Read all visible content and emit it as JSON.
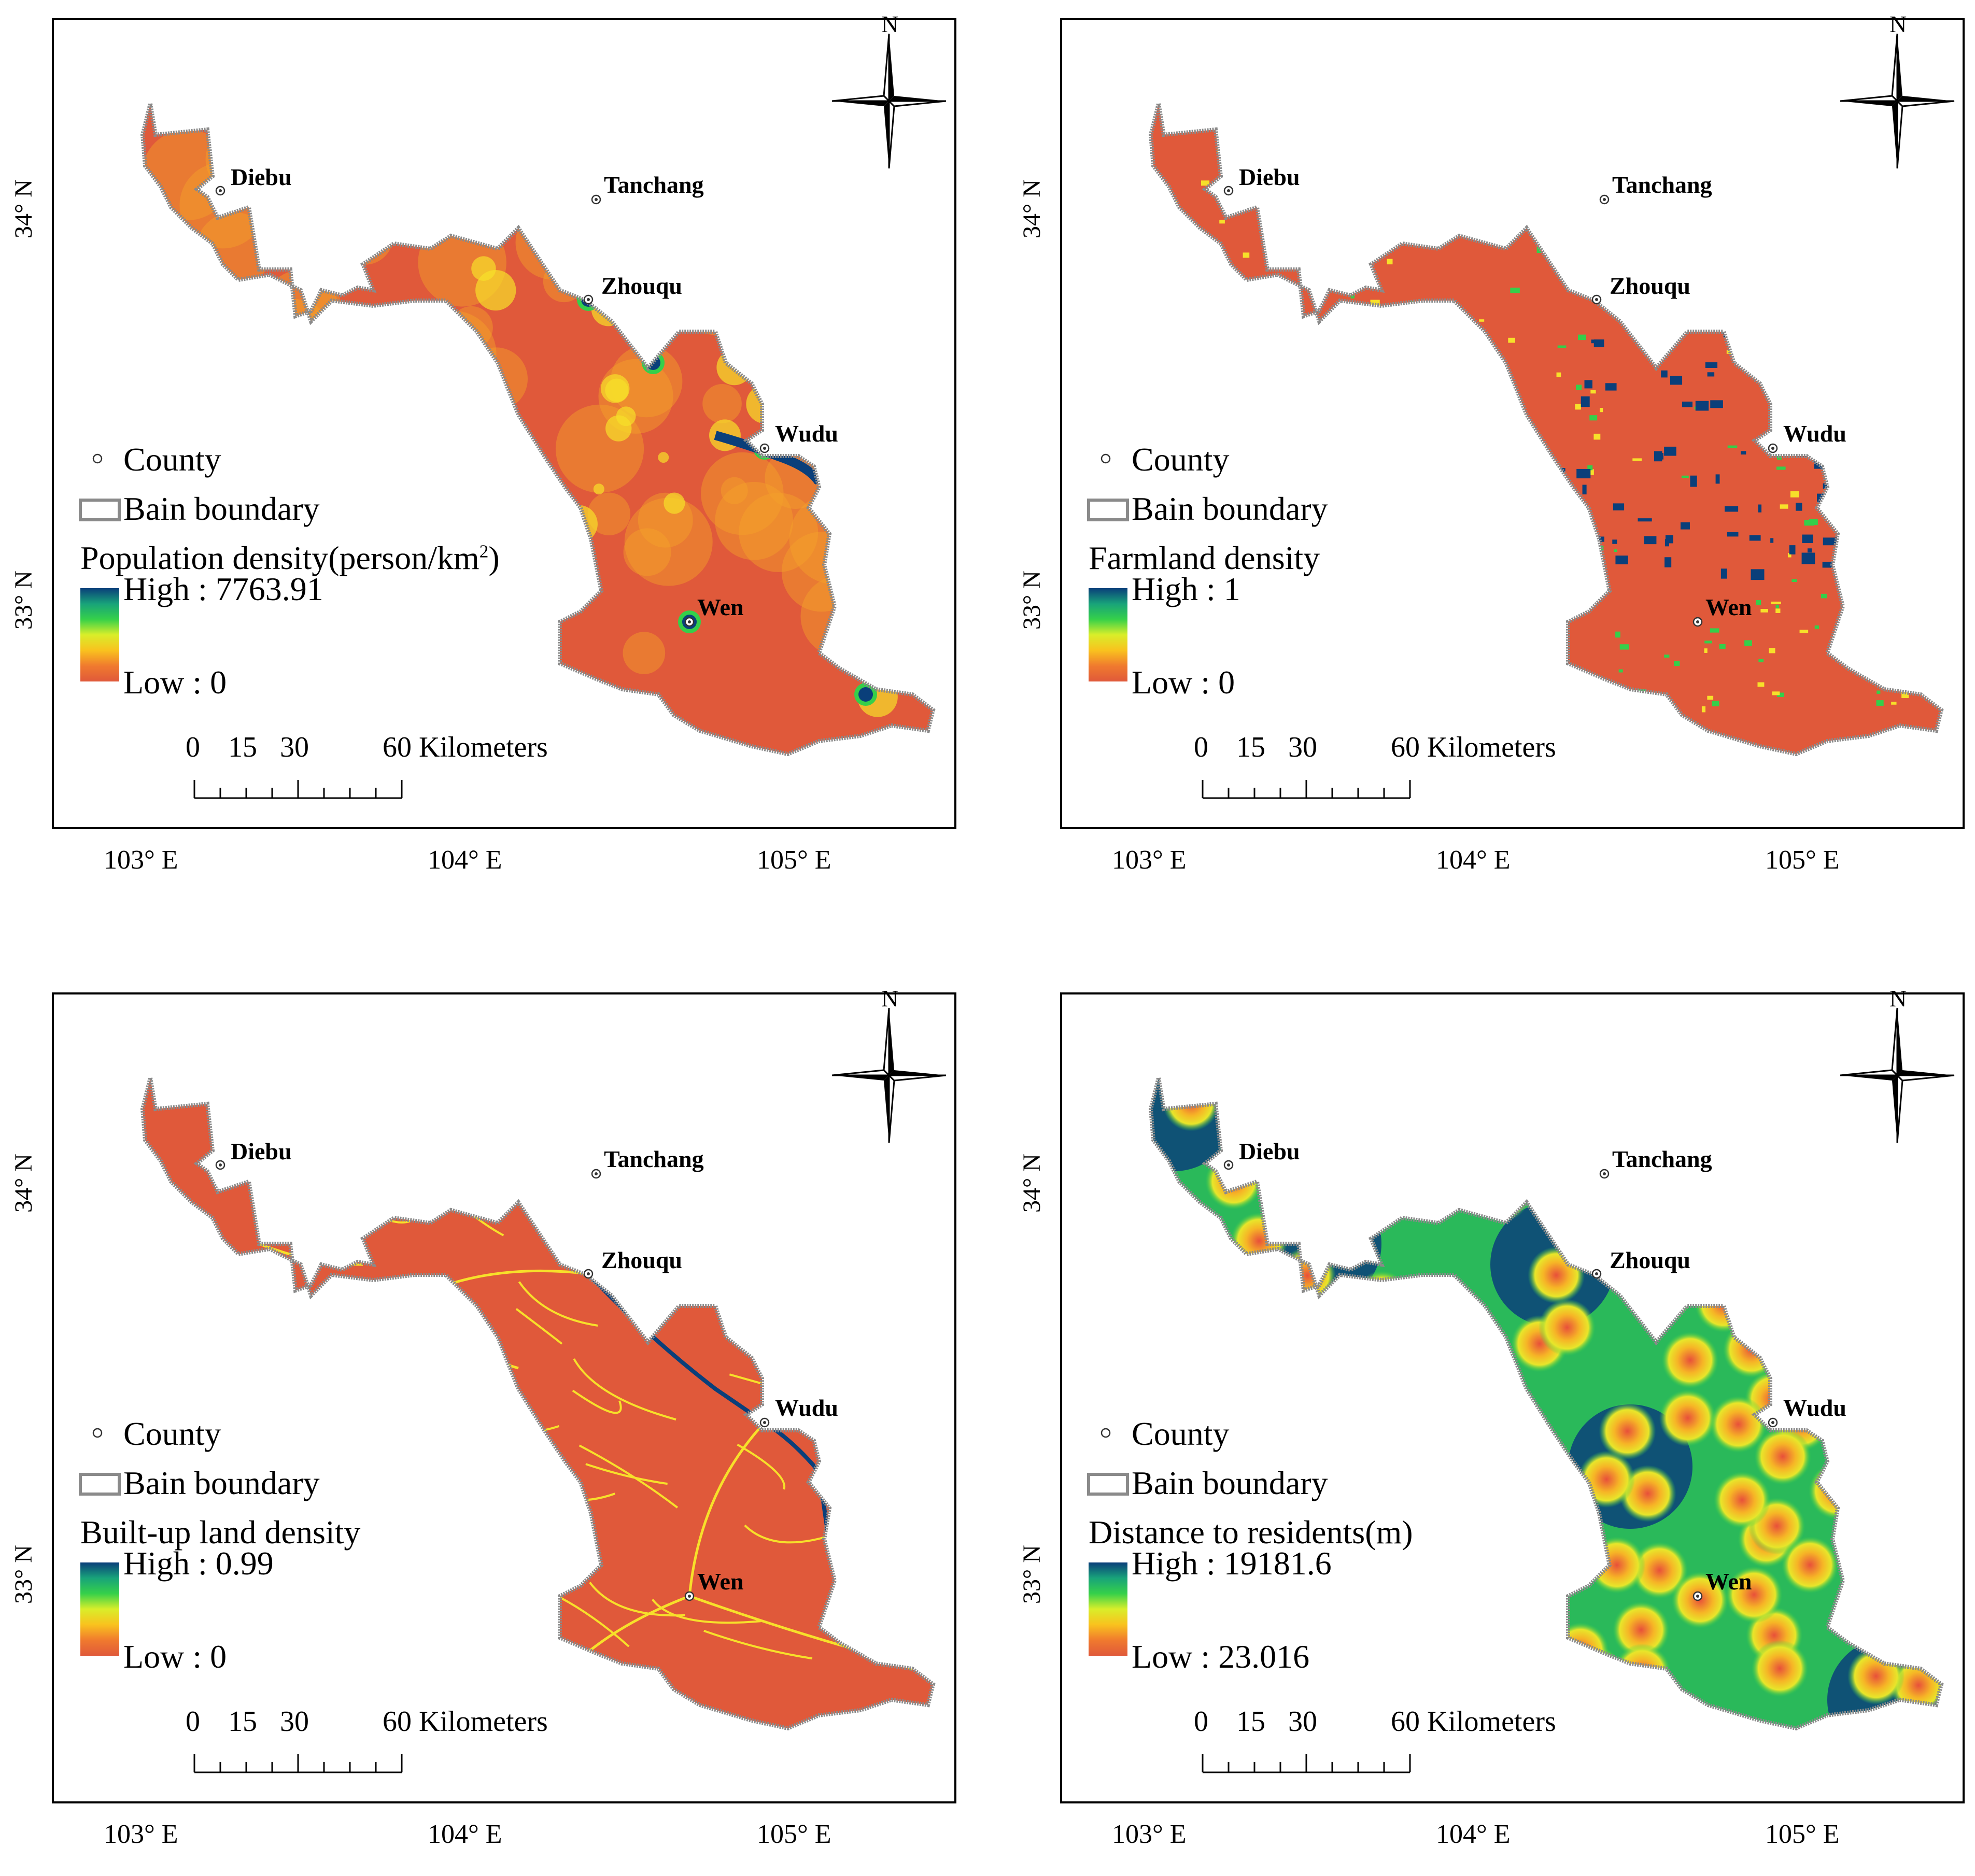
{
  "panels": [
    {
      "id": "population",
      "legend_title": "Population density(person/km",
      "legend_title_sup": "2",
      "legend_title_tail": ")",
      "high_label": "High : 7763.91",
      "low_label": "Low : 0",
      "colors": {
        "base": "#e0593a",
        "mid": "#f3a12a",
        "hot": "#f7e02a",
        "high": "#0a3f7a"
      }
    },
    {
      "id": "farmland",
      "legend_title": "Farmland density",
      "legend_title_sup": "",
      "legend_title_tail": "",
      "high_label": "High : 1",
      "low_label": "Low : 0",
      "colors": {
        "base": "#e0593a",
        "mid": "#f3a12a",
        "hot": "#f7e02a",
        "high": "#0a3f7a"
      }
    },
    {
      "id": "builtup",
      "legend_title": "Built-up land density",
      "legend_title_sup": "",
      "legend_title_tail": "",
      "high_label": "High : 0.99",
      "low_label": "Low : 0",
      "colors": {
        "base": "#e0593a",
        "mid": "#f3a12a",
        "hot": "#f7e02a",
        "high": "#0a3f7a"
      }
    },
    {
      "id": "distance",
      "legend_title": "Distance to residents(m)",
      "legend_title_sup": "",
      "legend_title_tail": "",
      "high_label": "High : 19181.6",
      "low_label": "Low : 23.016",
      "colors": {
        "base": "#22c55a",
        "mid": "#f3a12a",
        "hot": "#f7e02a",
        "high": "#0a3f7a"
      }
    }
  ],
  "common": {
    "county_legend": "County",
    "boundary_legend": "Bain boundary",
    "north": "N",
    "scale_labels": [
      "0",
      "15",
      "30",
      "60 Kilometers"
    ],
    "y_ticks": [
      "34° N",
      "33° N"
    ],
    "x_ticks": [
      "103° E",
      "104° E",
      "105° E"
    ],
    "counties": [
      "Diebu",
      "Tanchang",
      "Zhouqu",
      "Wudu",
      "Wen"
    ],
    "ramp_colors": [
      "#0a3f7a",
      "#18a37a",
      "#35d04a",
      "#d9ee2a",
      "#f9c21e",
      "#f07a2e",
      "#e0593a"
    ],
    "boundary_color": "#8a8a8a"
  }
}
